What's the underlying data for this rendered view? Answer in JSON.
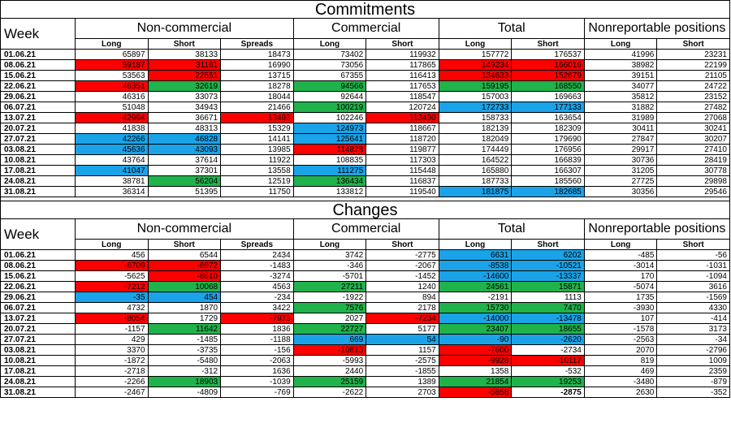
{
  "commitments": {
    "title": "Commitments",
    "week_label": "Week",
    "groups": [
      "Non-commercial",
      "Commercial",
      "Total",
      "Nonreportable positions"
    ],
    "subheaders": [
      "Long",
      "Short",
      "Spreads",
      "Long",
      "Short",
      "Long",
      "Short",
      "Long",
      "Short"
    ],
    "colors": {
      "red": "#ff0000",
      "green": "#21b34b",
      "blue": "#1aa3e8"
    },
    "rows": [
      {
        "week": "01.06.21",
        "cells": [
          [
            "65897",
            ""
          ],
          [
            "38133",
            ""
          ],
          [
            "18473",
            ""
          ],
          [
            "73402",
            ""
          ],
          [
            "119932",
            ""
          ],
          [
            "157772",
            ""
          ],
          [
            "176537",
            ""
          ],
          [
            "41996",
            ""
          ],
          [
            "23231",
            ""
          ]
        ]
      },
      {
        "week": "08.06.21",
        "cells": [
          [
            "59187",
            "r"
          ],
          [
            "31161",
            "r"
          ],
          [
            "16990",
            ""
          ],
          [
            "73056",
            ""
          ],
          [
            "117865",
            ""
          ],
          [
            "149234",
            "r"
          ],
          [
            "166016",
            "r"
          ],
          [
            "38982",
            ""
          ],
          [
            "22199",
            ""
          ]
        ]
      },
      {
        "week": "15.06.21",
        "cells": [
          [
            "53563",
            ""
          ],
          [
            "22551",
            "r"
          ],
          [
            "13715",
            ""
          ],
          [
            "67355",
            ""
          ],
          [
            "116413",
            ""
          ],
          [
            "134633",
            "r"
          ],
          [
            "152679",
            "r"
          ],
          [
            "39151",
            ""
          ],
          [
            "21105",
            ""
          ]
        ]
      },
      {
        "week": "22.06.21",
        "cells": [
          [
            "46351",
            "r"
          ],
          [
            "32619",
            "g"
          ],
          [
            "18278",
            ""
          ],
          [
            "94566",
            "g"
          ],
          [
            "117653",
            ""
          ],
          [
            "159195",
            "g"
          ],
          [
            "168550",
            "g"
          ],
          [
            "34077",
            ""
          ],
          [
            "24722",
            ""
          ]
        ]
      },
      {
        "week": "29.06.21",
        "cells": [
          [
            "46316",
            ""
          ],
          [
            "33073",
            ""
          ],
          [
            "18044",
            ""
          ],
          [
            "92644",
            ""
          ],
          [
            "118547",
            ""
          ],
          [
            "157003",
            ""
          ],
          [
            "169663",
            ""
          ],
          [
            "35812",
            ""
          ],
          [
            "23152",
            ""
          ]
        ]
      },
      {
        "week": "06.07.21",
        "cells": [
          [
            "51048",
            ""
          ],
          [
            "34943",
            ""
          ],
          [
            "21466",
            ""
          ],
          [
            "100219",
            "g"
          ],
          [
            "120724",
            ""
          ],
          [
            "172733",
            "b"
          ],
          [
            "177133",
            "b"
          ],
          [
            "31882",
            ""
          ],
          [
            "27482",
            ""
          ]
        ]
      },
      {
        "week": "13.07.21",
        "cells": [
          [
            "42994",
            "r"
          ],
          [
            "36671",
            ""
          ],
          [
            "13493",
            "r"
          ],
          [
            "102246",
            ""
          ],
          [
            "113490",
            "r"
          ],
          [
            "158733",
            ""
          ],
          [
            "163654",
            ""
          ],
          [
            "31989",
            ""
          ],
          [
            "27068",
            ""
          ]
        ]
      },
      {
        "week": "20.07.21",
        "cells": [
          [
            "41838",
            ""
          ],
          [
            "48313",
            ""
          ],
          [
            "15329",
            ""
          ],
          [
            "124973",
            "b"
          ],
          [
            "118667",
            ""
          ],
          [
            "182139",
            ""
          ],
          [
            "182309",
            ""
          ],
          [
            "30411",
            ""
          ],
          [
            "30241",
            ""
          ]
        ]
      },
      {
        "week": "27.07.21",
        "cells": [
          [
            "42266",
            "b"
          ],
          [
            "46828",
            "b"
          ],
          [
            "14141",
            ""
          ],
          [
            "125641",
            "b"
          ],
          [
            "118720",
            ""
          ],
          [
            "182049",
            ""
          ],
          [
            "179690",
            ""
          ],
          [
            "27847",
            ""
          ],
          [
            "30207",
            ""
          ]
        ]
      },
      {
        "week": "03.08.21",
        "cells": [
          [
            "45636",
            "b"
          ],
          [
            "43093",
            "b"
          ],
          [
            "13985",
            ""
          ],
          [
            "114828",
            "r"
          ],
          [
            "119877",
            ""
          ],
          [
            "174449",
            ""
          ],
          [
            "176956",
            ""
          ],
          [
            "29917",
            ""
          ],
          [
            "27410",
            ""
          ]
        ]
      },
      {
        "week": "10.08.21",
        "cells": [
          [
            "43764",
            ""
          ],
          [
            "37614",
            ""
          ],
          [
            "11922",
            ""
          ],
          [
            "108835",
            ""
          ],
          [
            "117303",
            ""
          ],
          [
            "164522",
            ""
          ],
          [
            "166839",
            ""
          ],
          [
            "30736",
            ""
          ],
          [
            "28419",
            ""
          ]
        ]
      },
      {
        "week": "17.08.21",
        "cells": [
          [
            "41047",
            "b"
          ],
          [
            "37301",
            ""
          ],
          [
            "13558",
            ""
          ],
          [
            "111275",
            "b"
          ],
          [
            "115448",
            ""
          ],
          [
            "165880",
            ""
          ],
          [
            "166307",
            ""
          ],
          [
            "31205",
            ""
          ],
          [
            "30778",
            ""
          ]
        ]
      },
      {
        "week": "24.08.21",
        "cells": [
          [
            "38781",
            ""
          ],
          [
            "56204",
            "g"
          ],
          [
            "12519",
            ""
          ],
          [
            "136434",
            "g"
          ],
          [
            "116837",
            ""
          ],
          [
            "187733",
            ""
          ],
          [
            "185560",
            ""
          ],
          [
            "27725",
            ""
          ],
          [
            "29898",
            ""
          ]
        ]
      },
      {
        "week": "31.08.21",
        "cells": [
          [
            "36314",
            ""
          ],
          [
            "51395",
            ""
          ],
          [
            "11750",
            ""
          ],
          [
            "133812",
            ""
          ],
          [
            "119540",
            ""
          ],
          [
            "181875",
            "b"
          ],
          [
            "182685",
            "b"
          ],
          [
            "30356",
            ""
          ],
          [
            "29546",
            ""
          ]
        ]
      }
    ]
  },
  "changes": {
    "title": "Changes",
    "week_label": "Week",
    "groups": [
      "Non-commercial",
      "Commercial",
      "Total",
      "Nonreportable positions"
    ],
    "subheaders": [
      "Long",
      "Short",
      "Spreads",
      "Long",
      "Short",
      "Long",
      "Short",
      "Long",
      "Short"
    ],
    "rows": [
      {
        "week": "01.06.21",
        "cells": [
          [
            "456",
            ""
          ],
          [
            "6544",
            ""
          ],
          [
            "2434",
            ""
          ],
          [
            "3742",
            ""
          ],
          [
            "-2775",
            ""
          ],
          [
            "6631",
            "b"
          ],
          [
            "6202",
            "b"
          ],
          [
            "-485",
            ""
          ],
          [
            "-56",
            ""
          ]
        ]
      },
      {
        "week": "08.06.21",
        "cells": [
          [
            "-6709",
            "r"
          ],
          [
            "-6972",
            "r"
          ],
          [
            "-1483",
            ""
          ],
          [
            "-346",
            ""
          ],
          [
            "-2067",
            ""
          ],
          [
            "-8538",
            "b"
          ],
          [
            "-10521",
            "b"
          ],
          [
            "-3014",
            ""
          ],
          [
            "-1031",
            ""
          ]
        ]
      },
      {
        "week": "15.06.21",
        "cells": [
          [
            "-5625",
            ""
          ],
          [
            "-8610",
            "r"
          ],
          [
            "-3274",
            ""
          ],
          [
            "-5701",
            ""
          ],
          [
            "-1452",
            ""
          ],
          [
            "-14600",
            "b"
          ],
          [
            "-13337",
            "b"
          ],
          [
            "170",
            ""
          ],
          [
            "-1094",
            ""
          ]
        ]
      },
      {
        "week": "22.06.21",
        "cells": [
          [
            "-7212",
            "r"
          ],
          [
            "10068",
            "g"
          ],
          [
            "4563",
            ""
          ],
          [
            "27211",
            "g"
          ],
          [
            "1240",
            ""
          ],
          [
            "24561",
            "g"
          ],
          [
            "15871",
            "g"
          ],
          [
            "-5074",
            ""
          ],
          [
            "3616",
            ""
          ]
        ]
      },
      {
        "week": "29.06.21",
        "cells": [
          [
            "-35",
            "b"
          ],
          [
            "454",
            "b"
          ],
          [
            "-234",
            ""
          ],
          [
            "-1922",
            ""
          ],
          [
            "894",
            ""
          ],
          [
            "-2191",
            ""
          ],
          [
            "1113",
            ""
          ],
          [
            "1735",
            ""
          ],
          [
            "-1569",
            ""
          ]
        ]
      },
      {
        "week": "06.07.21",
        "cells": [
          [
            "4732",
            ""
          ],
          [
            "1870",
            ""
          ],
          [
            "3422",
            ""
          ],
          [
            "7576",
            "g"
          ],
          [
            "2178",
            ""
          ],
          [
            "15730",
            "g"
          ],
          [
            "7470",
            "g"
          ],
          [
            "-3930",
            ""
          ],
          [
            "4330",
            ""
          ]
        ]
      },
      {
        "week": "13.07.21",
        "cells": [
          [
            "-8054",
            "r"
          ],
          [
            "1729",
            ""
          ],
          [
            "-7973",
            "r"
          ],
          [
            "2027",
            ""
          ],
          [
            "-7234",
            "r"
          ],
          [
            "-14000",
            "b"
          ],
          [
            "-13478",
            "b"
          ],
          [
            "107",
            ""
          ],
          [
            "-414",
            ""
          ]
        ]
      },
      {
        "week": "20.07.21",
        "cells": [
          [
            "-1157",
            ""
          ],
          [
            "11642",
            "g"
          ],
          [
            "1836",
            ""
          ],
          [
            "22727",
            "g"
          ],
          [
            "5177",
            ""
          ],
          [
            "23407",
            "g"
          ],
          [
            "18655",
            "g"
          ],
          [
            "-1578",
            ""
          ],
          [
            "3173",
            ""
          ]
        ]
      },
      {
        "week": "27.07.21",
        "cells": [
          [
            "429",
            ""
          ],
          [
            "-1485",
            ""
          ],
          [
            "-1188",
            ""
          ],
          [
            "669",
            "b"
          ],
          [
            "54",
            "b"
          ],
          [
            "-90",
            "b"
          ],
          [
            "-2620",
            "b"
          ],
          [
            "-2563",
            ""
          ],
          [
            "-34",
            ""
          ]
        ]
      },
      {
        "week": "03.08.21",
        "cells": [
          [
            "3370",
            ""
          ],
          [
            "-3735",
            ""
          ],
          [
            "-156",
            ""
          ],
          [
            "-10813",
            "r"
          ],
          [
            "1157",
            ""
          ],
          [
            "-7600",
            "r"
          ],
          [
            "-2734",
            ""
          ],
          [
            "2070",
            ""
          ],
          [
            "-2796",
            ""
          ]
        ]
      },
      {
        "week": "10.08.21",
        "cells": [
          [
            "-1872",
            ""
          ],
          [
            "-5480",
            ""
          ],
          [
            "-2063",
            ""
          ],
          [
            "-5993",
            ""
          ],
          [
            "-2575",
            ""
          ],
          [
            "-9928",
            "r"
          ],
          [
            "-10117",
            "r"
          ],
          [
            "819",
            ""
          ],
          [
            "1009",
            ""
          ]
        ]
      },
      {
        "week": "17.08.21",
        "cells": [
          [
            "-2718",
            ""
          ],
          [
            "-312",
            ""
          ],
          [
            "1636",
            ""
          ],
          [
            "2440",
            ""
          ],
          [
            "-1855",
            ""
          ],
          [
            "1358",
            ""
          ],
          [
            "-532",
            ""
          ],
          [
            "469",
            ""
          ],
          [
            "2359",
            ""
          ]
        ]
      },
      {
        "week": "24.08.21",
        "cells": [
          [
            "-2266",
            ""
          ],
          [
            "18903",
            "g"
          ],
          [
            "-1039",
            ""
          ],
          [
            "25159",
            "g"
          ],
          [
            "1389",
            ""
          ],
          [
            "21854",
            "g"
          ],
          [
            "19253",
            "g"
          ],
          [
            "-3480",
            ""
          ],
          [
            "-879",
            ""
          ]
        ]
      },
      {
        "week": "31.08.21",
        "cells": [
          [
            "-2467",
            ""
          ],
          [
            "-4809",
            ""
          ],
          [
            "-769",
            ""
          ],
          [
            "-2622",
            ""
          ],
          [
            "2703",
            ""
          ],
          [
            "-5858",
            "r"
          ],
          [
            "-2875",
            "bold"
          ],
          [
            "2630",
            ""
          ],
          [
            "-352",
            ""
          ]
        ]
      }
    ]
  }
}
